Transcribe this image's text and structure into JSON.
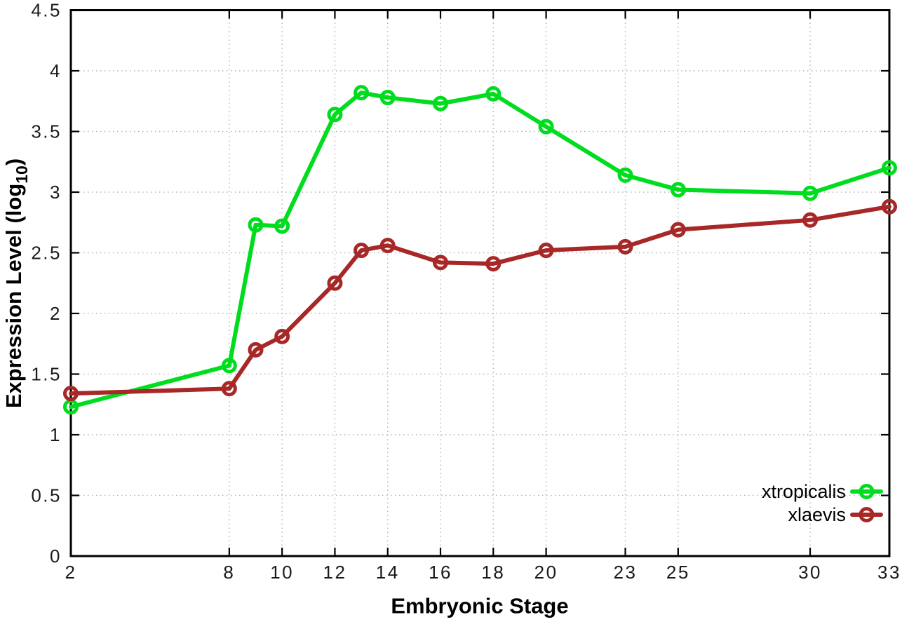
{
  "figure": {
    "background_color": "#ffffff",
    "border_color": "#000000",
    "grid_color": "#b3b3b3"
  },
  "axis_labels": {
    "x": "Embryonic Stage",
    "y_prefix": "Expression Level (log",
    "y_sub": "10",
    "y_suffix": ")"
  },
  "chart_data": {
    "type": "line",
    "title": "",
    "xlabel": "Embryonic Stage",
    "ylabel": "Expression Level (log10)",
    "grid": true,
    "legend_position": "bottom-right",
    "xlim": [
      2,
      33
    ],
    "ylim": [
      0,
      4.5
    ],
    "xticks": [
      2,
      8,
      10,
      12,
      14,
      16,
      18,
      20,
      23,
      25,
      30,
      33
    ],
    "yticks": [
      0,
      0.5,
      1,
      1.5,
      2,
      2.5,
      3,
      3.5,
      4,
      4.5
    ],
    "x": [
      2,
      8,
      9,
      10,
      12,
      13,
      14,
      16,
      18,
      20,
      23,
      25,
      30,
      33
    ],
    "series": [
      {
        "name": "xtropicalis",
        "color": "#00dd1e",
        "marker": "open-circle",
        "values": [
          1.23,
          1.57,
          2.73,
          2.72,
          3.64,
          3.82,
          3.78,
          3.73,
          3.81,
          3.54,
          3.14,
          3.02,
          2.99,
          3.2
        ]
      },
      {
        "name": "xlaevis",
        "color": "#a82828",
        "marker": "open-circle",
        "values": [
          1.34,
          1.38,
          1.7,
          1.81,
          2.25,
          2.52,
          2.56,
          2.42,
          2.41,
          2.52,
          2.55,
          2.69,
          2.77,
          2.88
        ]
      }
    ]
  }
}
